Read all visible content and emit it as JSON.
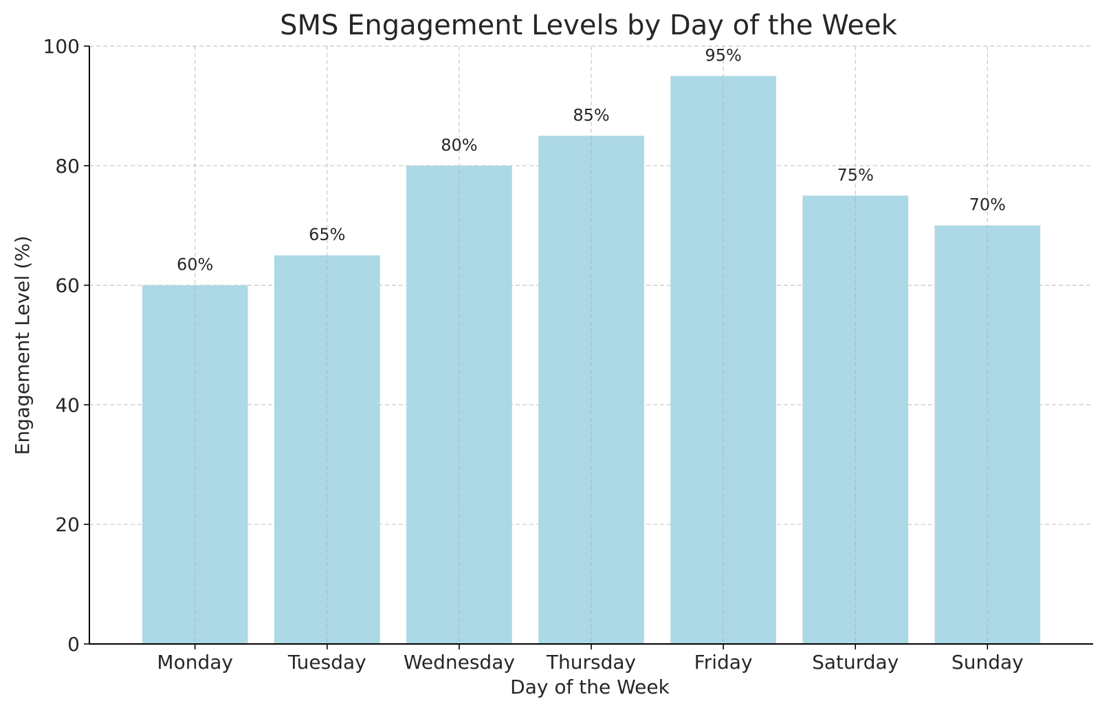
{
  "chart_data": {
    "type": "bar",
    "title": "SMS Engagement Levels by Day of the Week",
    "xlabel": "Day of the Week",
    "ylabel": "Engagement Level (%)",
    "categories": [
      "Monday",
      "Tuesday",
      "Wednesday",
      "Thursday",
      "Friday",
      "Saturday",
      "Sunday"
    ],
    "values": [
      60,
      65,
      80,
      85,
      95,
      75,
      70
    ],
    "data_labels": [
      "60%",
      "65%",
      "80%",
      "85%",
      "95%",
      "75%",
      "70%"
    ],
    "ylim": [
      0,
      100
    ],
    "yticks": [
      0,
      20,
      40,
      60,
      80,
      100
    ],
    "grid": true,
    "bar_color": "#add8e6"
  }
}
